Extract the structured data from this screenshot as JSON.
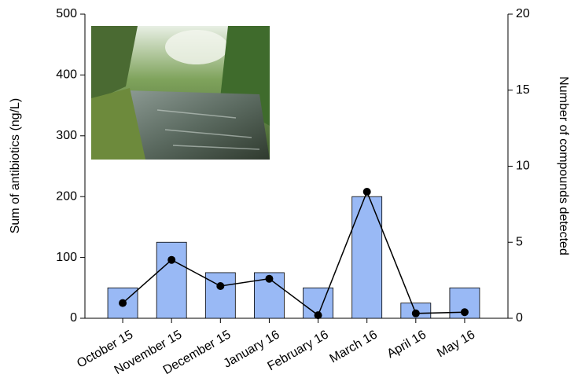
{
  "chart_data": {
    "type": "bar",
    "categories": [
      "October 15",
      "November 15",
      "December 15",
      "January 16",
      "February 16",
      "March 16",
      "April 16",
      "May 16"
    ],
    "ylabel": "Sum of antibiotics (ng/L)",
    "y2label": "Number of compounds detected",
    "ylim": [
      0,
      500
    ],
    "yticks": [
      0,
      100,
      200,
      300,
      400,
      500
    ],
    "y2lim": [
      0,
      20
    ],
    "y2ticks": [
      0,
      5,
      10,
      15,
      20
    ],
    "series": [
      {
        "type": "bar",
        "axis": "y2",
        "color": "#99b9f5",
        "values": [
          2,
          5,
          3,
          3,
          2,
          8,
          1,
          2
        ]
      },
      {
        "type": "line",
        "axis": "y",
        "color": "#000000",
        "values": [
          25,
          96,
          53,
          65,
          5,
          208,
          8,
          10
        ]
      }
    ]
  }
}
